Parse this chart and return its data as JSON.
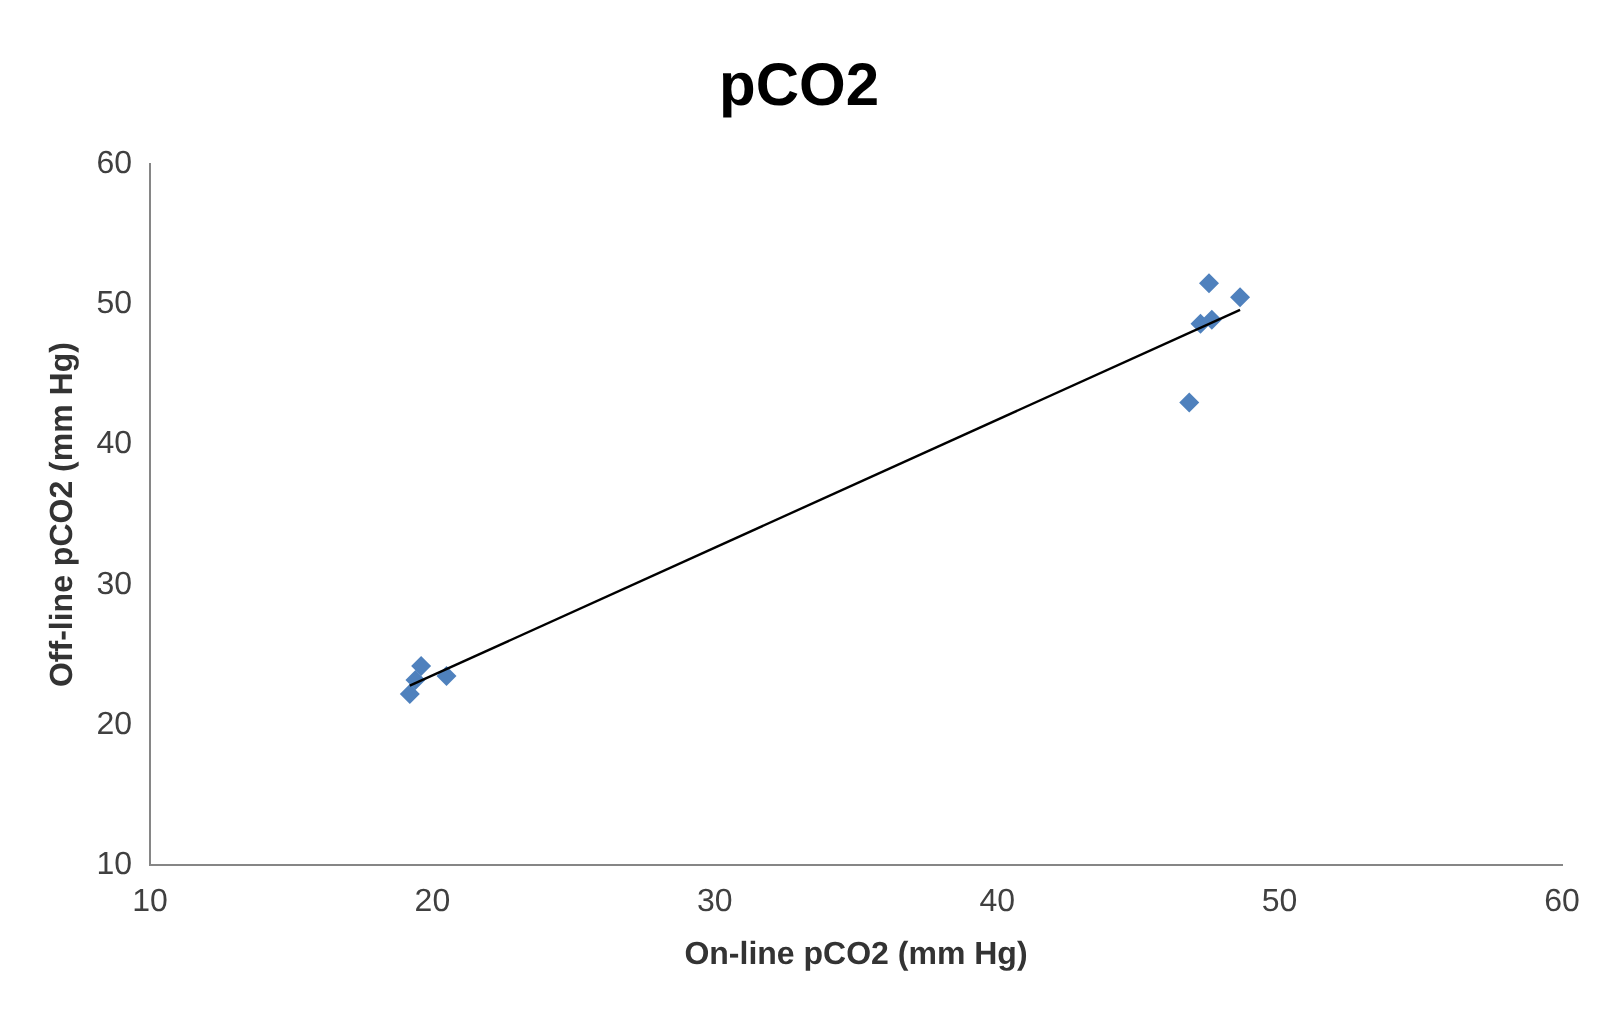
{
  "chart_data": {
    "type": "scatter",
    "title": "pCO2",
    "xlabel": "On-line pCO2 (mm Hg)",
    "ylabel": "Off-line pCO2 (mm Hg)",
    "xlim": [
      10,
      60
    ],
    "xticks": [
      10,
      20,
      30,
      40,
      50,
      60
    ],
    "ylim": [
      10,
      60
    ],
    "yticks": [
      10,
      20,
      30,
      40,
      50,
      60
    ],
    "grid": false,
    "legend": false,
    "marker": "diamond",
    "series": [
      {
        "type": "scatter",
        "color": "#4f81bd",
        "x": [
          19.2,
          19.4,
          19.6,
          20.5,
          46.8,
          47.5,
          47.2,
          47.6,
          48.6
        ],
        "values": [
          22.2,
          23.2,
          24.2,
          23.5,
          43.0,
          51.5,
          48.6,
          48.9,
          50.5
        ]
      },
      {
        "type": "line",
        "color": "#000000",
        "marker": "none",
        "x": [
          19.2,
          48.6
        ],
        "values": [
          22.8,
          49.6
        ]
      }
    ]
  }
}
